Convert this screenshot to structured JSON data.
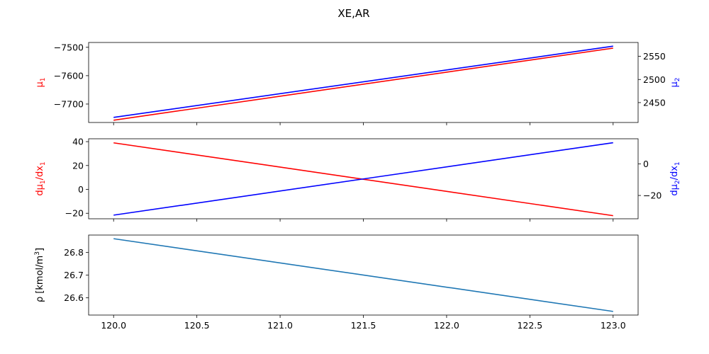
{
  "figure": {
    "title": "XE,AR"
  },
  "chart_data": [
    {
      "type": "line",
      "title": "",
      "xlim": [
        119.85,
        123.15
      ],
      "x_ticks": [
        "120.0",
        "120.5",
        "121.0",
        "121.5",
        "122.0",
        "122.5",
        "123.0"
      ],
      "x_ticks_labeled": false,
      "left_axis": {
        "label_main": "μ",
        "label_sub": "1",
        "color": "#ff0000",
        "ylim": [
          -7765,
          -7483
        ],
        "ticks": [
          -7700,
          -7600,
          -7500
        ],
        "tick_labels": [
          "−7700",
          "−7600",
          "−7500"
        ]
      },
      "right_axis": {
        "label_main": "μ",
        "label_sub": "2",
        "color": "#0000ff",
        "ylim": [
          2407,
          2580
        ],
        "ticks": [
          2450,
          2500,
          2550
        ],
        "tick_labels": [
          "2450",
          "2500",
          "2550"
        ]
      },
      "series": [
        {
          "axis": "left",
          "color": "#ff0000",
          "x": [
            120.0,
            123.0
          ],
          "y": [
            -7757,
            -7503
          ]
        },
        {
          "axis": "right",
          "color": "#0000ff",
          "x": [
            120.0,
            123.0
          ],
          "y": [
            2418,
            2572
          ]
        }
      ]
    },
    {
      "type": "line",
      "title": "",
      "xlim": [
        119.85,
        123.15
      ],
      "x_ticks": [
        "120.0",
        "120.5",
        "121.0",
        "121.5",
        "122.0",
        "122.5",
        "123.0"
      ],
      "x_ticks_labeled": false,
      "left_axis": {
        "label_main": "dμ",
        "label_sub1": "1",
        "label_mid": "/dx",
        "label_sub2": "1",
        "color": "#ff0000",
        "ylim": [
          -24.6,
          42.4
        ],
        "ticks": [
          -20,
          0,
          20,
          40
        ],
        "tick_labels": [
          "−20",
          "0",
          "20",
          "40"
        ]
      },
      "right_axis": {
        "label_main": "dμ",
        "label_sub1": "2",
        "label_mid": "/dx",
        "label_sub2": "1",
        "color": "#0000ff",
        "ylim": [
          -34.8,
          16.0
        ],
        "ticks": [
          -20,
          0
        ],
        "tick_labels": [
          "−20",
          "0"
        ]
      },
      "series": [
        {
          "axis": "left",
          "color": "#ff0000",
          "x": [
            120.0,
            123.0
          ],
          "y": [
            39,
            -22
          ]
        },
        {
          "axis": "right",
          "color": "#0000ff",
          "x": [
            120.0,
            123.0
          ],
          "y": [
            -32.5,
            13.5
          ]
        }
      ]
    },
    {
      "type": "line",
      "title": "",
      "xlim": [
        119.85,
        123.15
      ],
      "x_ticks": [
        "120.0",
        "120.5",
        "121.0",
        "121.5",
        "122.0",
        "122.5",
        "123.0"
      ],
      "x_ticks_labeled": true,
      "left_axis": {
        "label_main": "ρ [kmol/m",
        "label_sup": "3",
        "label_end": "]",
        "color": "#000000",
        "ylim": [
          26.524,
          26.877
        ],
        "ticks": [
          26.6,
          26.7,
          26.8
        ],
        "tick_labels": [
          "26.6",
          "26.7",
          "26.8"
        ]
      },
      "series": [
        {
          "axis": "left",
          "color": "#1f77b4",
          "x": [
            120.0,
            123.0
          ],
          "y": [
            26.861,
            26.54
          ]
        }
      ]
    }
  ]
}
